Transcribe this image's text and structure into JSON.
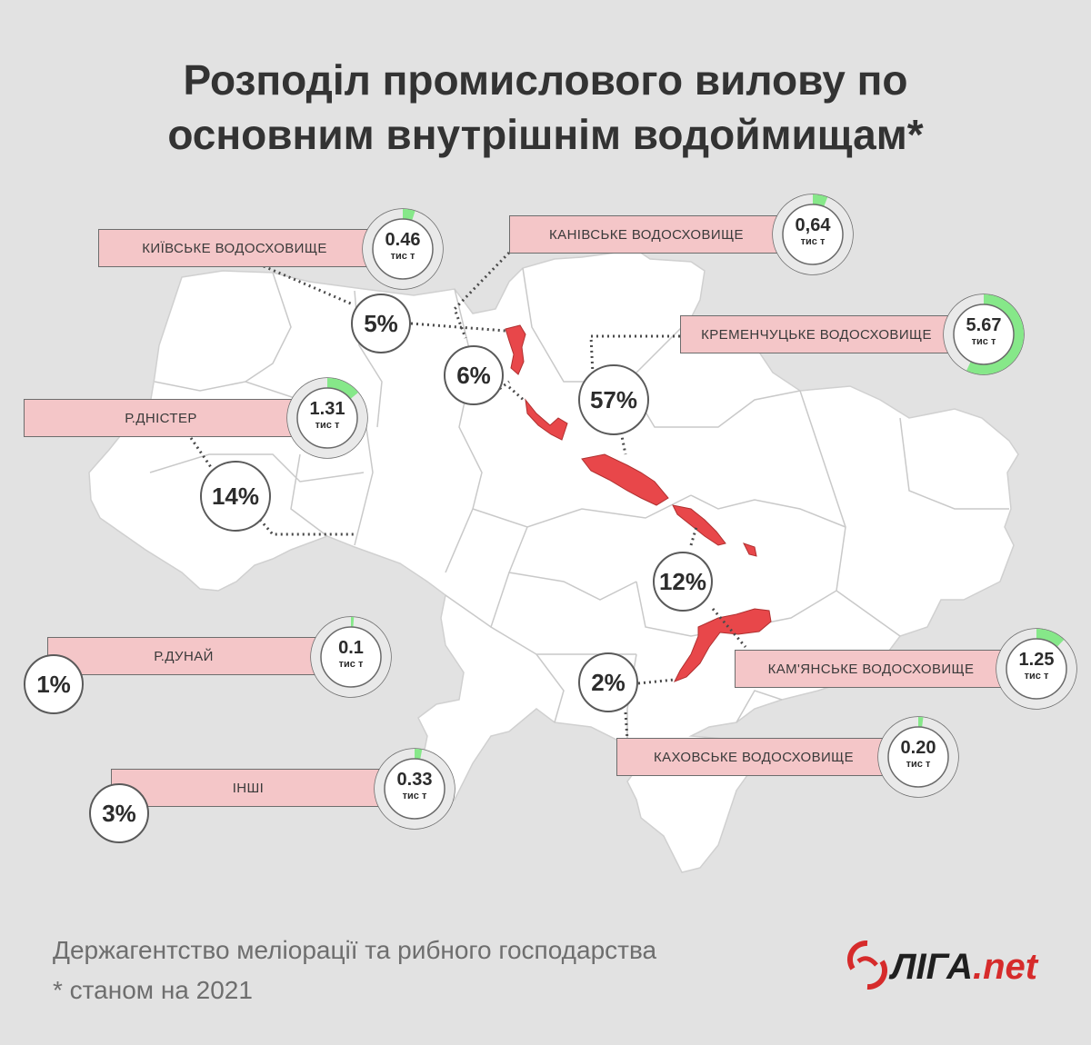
{
  "title": {
    "line1": "Розподіл промислового вилову по",
    "line2": "основним внутрішнім водоймищам*"
  },
  "reservoirs": [
    {
      "name": "КИЇВСЬКЕ ВОДОСХОВИЩЕ",
      "catch": "0.46",
      "unit": "тис т",
      "share_label": "5%",
      "share": 5
    },
    {
      "name": "КАНІВСЬКЕ ВОДОСХОВИЩЕ",
      "catch": "0,64",
      "unit": "тис т",
      "share_label": "6%",
      "share": 6
    },
    {
      "name": "КРЕМЕНЧУЦЬКЕ ВОДОСХОВИЩЕ",
      "catch": "5.67",
      "unit": "тис т",
      "share_label": "57%",
      "share": 57
    },
    {
      "name": "Р.ДНІСТЕР",
      "catch": "1.31",
      "unit": "тис т",
      "share_label": "14%",
      "share": 14
    },
    {
      "name": "Р.ДУНАЙ",
      "catch": "0.1",
      "unit": "тис т",
      "share_label": "1%",
      "share": 1
    },
    {
      "name": "КАМ'ЯНСЬКЕ ВОДОСХОВИЩЕ",
      "catch": "1.25",
      "unit": "тис т",
      "share_label": "12%",
      "share": 12
    },
    {
      "name": "ІНШІ",
      "catch": "0.33",
      "unit": "тис т",
      "share_label": "3%",
      "share": 3
    },
    {
      "name": "КАХОВСЬКЕ ВОДОСХОВИЩЕ",
      "catch": "0.20",
      "unit": "тис т",
      "share_label": "2%",
      "share": 2
    }
  ],
  "colors": {
    "background": "#e2e2e2",
    "map_fill": "#ffffff",
    "reservoir_red": "#e8474a",
    "label_pink": "#f4c6c8",
    "donut_green": "#86e889",
    "donut_track": "#e9e9e9"
  },
  "source": "Держагентство меліорації та рибного господарства",
  "footnote": "* станом на 2021",
  "logo": {
    "main": "ЛІГА",
    "suffix": ".net"
  }
}
